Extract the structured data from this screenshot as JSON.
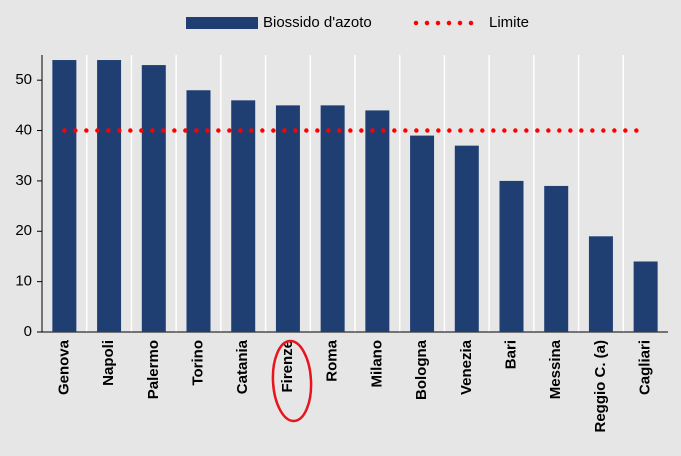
{
  "chart_data": {
    "type": "bar",
    "categories": [
      "Genova",
      "Napoli",
      "Palermo",
      "Torino",
      "Catania",
      "Firenze",
      "Roma",
      "Milano",
      "Bologna",
      "Venezia",
      "Bari",
      "Messina",
      "Reggio C. (a)",
      "Cagliari"
    ],
    "series": [
      {
        "name": "Biossido d'azoto",
        "color": "#1f3f73",
        "type": "bar",
        "values": [
          54,
          54,
          53,
          48,
          46,
          45,
          45,
          44,
          39,
          37,
          30,
          29,
          19,
          14
        ]
      },
      {
        "name": "Limite",
        "color": "#ff0000",
        "type": "line",
        "style": "dotted",
        "values": [
          40,
          40,
          40,
          40,
          40,
          40,
          40,
          40,
          40,
          40,
          40,
          40,
          40,
          40
        ]
      }
    ],
    "ylim": [
      0,
      55
    ],
    "yticks": [
      0,
      10,
      20,
      30,
      40,
      50
    ],
    "grid": true,
    "legend": "top"
  }
}
